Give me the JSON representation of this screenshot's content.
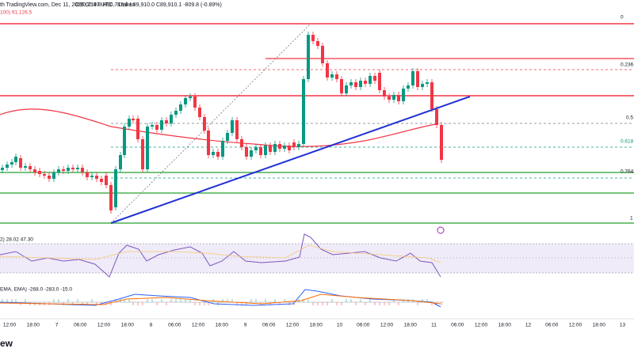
{
  "header": {
    "line1": "th TradingView.com, Dec 11, 2025 02:47 UTC · Kraken",
    "ohlc": "O90,719.8  H90,719.8  L89,910.0  C89,910.1  -809.8 (-0.89%)",
    "line2": "100)  91,126.5"
  },
  "fib_levels": [
    "0",
    "0.236",
    "0.5",
    "0.618",
    "0.764",
    "1"
  ],
  "rsi_legend": "2)  28.02  47.30",
  "macd_legend": "EMA, EMA)  -268.0  -283.0  -15.0",
  "time_axis": [
    "12:00",
    "18:00",
    "7",
    "06:00",
    "12:00",
    "18:00",
    "8",
    "06:00",
    "12:00",
    "18:00",
    "9",
    "06:00",
    "12:00",
    "18:00",
    "10",
    "06:00",
    "12:00",
    "18:00",
    "11",
    "06:00",
    "12:00",
    "18:00",
    "12",
    "06:00",
    "12:00",
    "18:00",
    "13"
  ],
  "footer": "ew"
}
